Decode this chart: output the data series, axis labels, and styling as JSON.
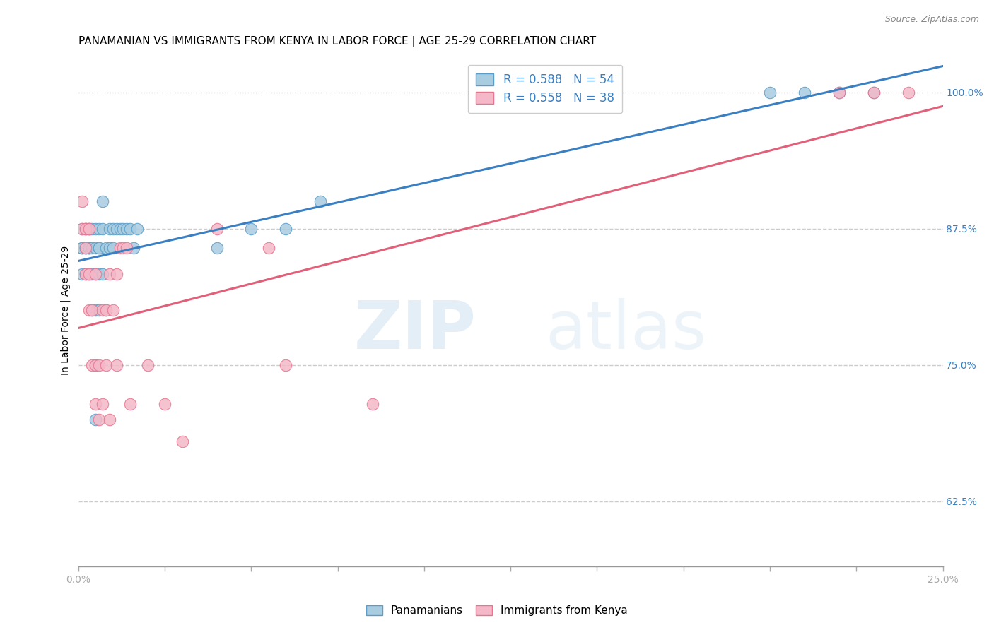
{
  "title": "PANAMANIAN VS IMMIGRANTS FROM KENYA IN LABOR FORCE | AGE 25-29 CORRELATION CHART",
  "source": "Source: ZipAtlas.com",
  "ylabel": "In Labor Force | Age 25-29",
  "xlim": [
    0.0,
    0.25
  ],
  "ylim": [
    0.565,
    1.035
  ],
  "xticks": [
    0.0,
    0.025,
    0.05,
    0.075,
    0.1,
    0.125,
    0.15,
    0.175,
    0.2,
    0.225,
    0.25
  ],
  "xticklabels_show": [
    "0.0%",
    "",
    "",
    "",
    "",
    "",
    "",
    "",
    "",
    "",
    "25.0%"
  ],
  "yticks": [
    0.625,
    0.75,
    0.875,
    1.0
  ],
  "yticklabels": [
    "62.5%",
    "75.0%",
    "87.5%",
    "100.0%"
  ],
  "legend_r1": "R = 0.588",
  "legend_n1": "N = 54",
  "legend_r2": "R = 0.558",
  "legend_n2": "N = 38",
  "blue_color": "#a8cce0",
  "pink_color": "#f4b8c8",
  "blue_edge_color": "#5b9dc9",
  "pink_edge_color": "#e8748e",
  "blue_line_color": "#3a7fc1",
  "pink_line_color": "#e0607a",
  "blue_x": [
    0.001,
    0.001,
    0.001,
    0.001,
    0.002,
    0.002,
    0.002,
    0.002,
    0.002,
    0.003,
    0.003,
    0.003,
    0.003,
    0.003,
    0.003,
    0.004,
    0.004,
    0.004,
    0.004,
    0.005,
    0.005,
    0.005,
    0.005,
    0.005,
    0.005,
    0.006,
    0.006,
    0.006,
    0.006,
    0.006,
    0.007,
    0.007,
    0.007,
    0.008,
    0.008,
    0.009,
    0.009,
    0.01,
    0.01,
    0.011,
    0.012,
    0.013,
    0.014,
    0.015,
    0.016,
    0.017,
    0.04,
    0.05,
    0.06,
    0.07,
    0.2,
    0.21,
    0.22,
    0.23
  ],
  "blue_y": [
    0.857,
    0.857,
    0.875,
    0.833,
    0.857,
    0.875,
    0.875,
    0.833,
    0.857,
    0.833,
    0.857,
    0.875,
    0.875,
    0.857,
    0.857,
    0.8,
    0.833,
    0.857,
    0.875,
    0.7,
    0.75,
    0.8,
    0.833,
    0.875,
    0.857,
    0.8,
    0.833,
    0.857,
    0.875,
    0.857,
    0.833,
    0.875,
    0.9,
    0.857,
    0.8,
    0.857,
    0.875,
    0.857,
    0.875,
    0.875,
    0.875,
    0.875,
    0.875,
    0.875,
    0.857,
    0.875,
    0.857,
    0.875,
    0.875,
    0.9,
    1.0,
    1.0,
    1.0,
    1.0
  ],
  "pink_x": [
    0.001,
    0.001,
    0.002,
    0.002,
    0.002,
    0.003,
    0.003,
    0.003,
    0.004,
    0.004,
    0.005,
    0.005,
    0.005,
    0.006,
    0.006,
    0.007,
    0.007,
    0.008,
    0.008,
    0.009,
    0.009,
    0.01,
    0.011,
    0.011,
    0.012,
    0.013,
    0.014,
    0.015,
    0.02,
    0.025,
    0.03,
    0.04,
    0.055,
    0.06,
    0.085,
    0.22,
    0.23,
    0.24
  ],
  "pink_y": [
    0.9,
    0.875,
    0.833,
    0.857,
    0.875,
    0.8,
    0.833,
    0.875,
    0.75,
    0.8,
    0.714,
    0.75,
    0.833,
    0.7,
    0.75,
    0.714,
    0.8,
    0.75,
    0.8,
    0.7,
    0.833,
    0.8,
    0.75,
    0.833,
    0.857,
    0.857,
    0.857,
    0.714,
    0.75,
    0.714,
    0.68,
    0.875,
    0.857,
    0.75,
    0.714,
    1.0,
    1.0,
    1.0
  ],
  "watermark_zip": "ZIP",
  "watermark_atlas": "atlas",
  "title_fontsize": 11,
  "tick_fontsize": 10,
  "source_fontsize": 9,
  "ylabel_fontsize": 10
}
